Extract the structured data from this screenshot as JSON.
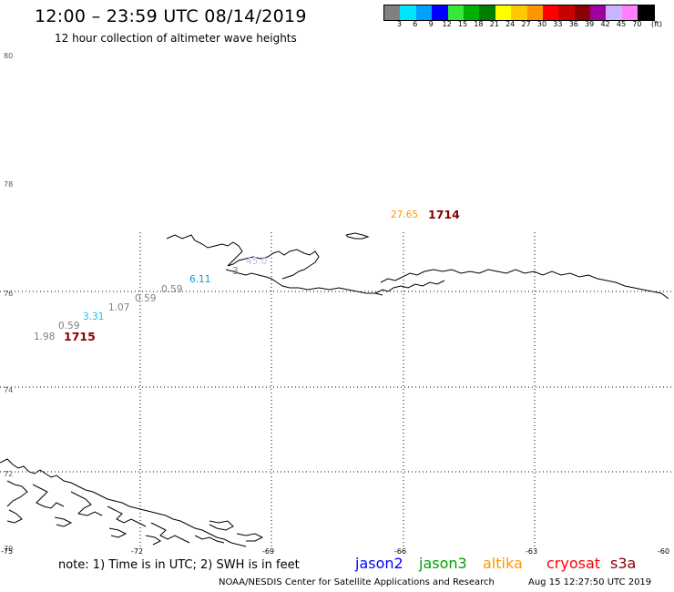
{
  "title": "12:00 – 23:59 UTC 08/14/2019",
  "subtitle": "12 hour collection of altimeter wave heights",
  "legend": {
    "colors": [
      "#808080",
      "#00e5ff",
      "#00a0ff",
      "#0000ff",
      "#38e838",
      "#00b000",
      "#008000",
      "#ffff00",
      "#ffc800",
      "#ff9600",
      "#ff0000",
      "#c80000",
      "#8b0000",
      "#a000a0",
      "#c8b4ff",
      "#ff80ff",
      "#000000"
    ],
    "labels": [
      "3",
      "6",
      "9",
      "12",
      "15",
      "18",
      "21",
      "24",
      "27",
      "30",
      "33",
      "36",
      "39",
      "42",
      "45",
      "70"
    ],
    "unit": "(ft)"
  },
  "lat_labels": [
    "80",
    "78",
    "76",
    "74",
    "72",
    "70"
  ],
  "lon_labels": [
    "-75",
    "-72",
    "-69",
    "-66",
    "-63",
    "-60"
  ],
  "observations": [
    {
      "text": "1.98",
      "color": "#808080"
    },
    {
      "text": "0.59",
      "color": "#808080"
    },
    {
      "text": "3.31",
      "color": "#00c8ff"
    },
    {
      "text": "1.07",
      "color": "#808080"
    },
    {
      "text": "0.59",
      "color": "#808080"
    },
    {
      "text": "0.59",
      "color": "#808080"
    },
    {
      "text": "6.11",
      "color": "#00a0dc"
    },
    {
      "text": "27.65",
      "color": "#ff9600"
    },
    {
      "text": "3",
      "color": "#808080"
    },
    {
      "text": "45.0",
      "color": "#c8b4ff"
    }
  ],
  "pass_times": {
    "a": "1715",
    "b": "1714"
  },
  "note": "note: 1) Time is in UTC; 2) SWH is in feet",
  "satellites": [
    {
      "name": "jason2",
      "color": "#0000ff"
    },
    {
      "name": "jason3",
      "color": "#00a000"
    },
    {
      "name": "altika",
      "color": "#ff9600"
    },
    {
      "name": "cryosat",
      "color": "#ff0000"
    },
    {
      "name": "s3a",
      "color": "#8b0000"
    }
  ],
  "credit": "NOAA/NESDIS Center for Satellite Applications and Research",
  "timestamp": "Aug 15 12:27:50 UTC 2019"
}
